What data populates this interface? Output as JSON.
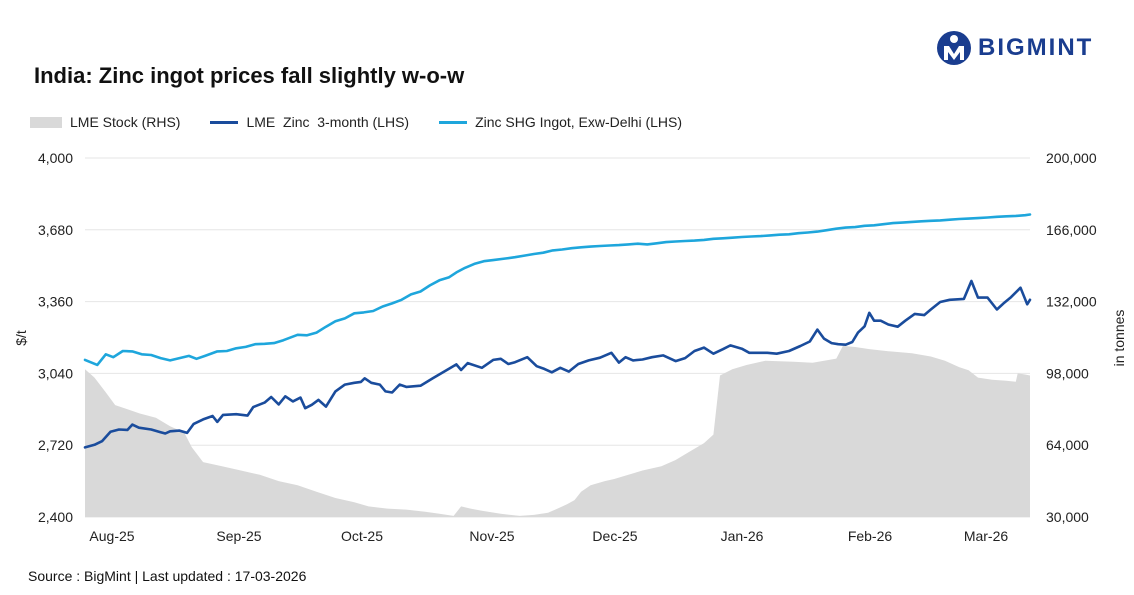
{
  "header": {
    "title": "India: Zinc ingot prices fall slightly w-o-w",
    "brand": "BIGMINT"
  },
  "footer": {
    "source": "Source : BigMint | Last updated : 17-03-2026"
  },
  "colors": {
    "stock": "#d9d9d9",
    "lme": "#1a4c9c",
    "shg": "#1ea6dc",
    "brand": "#1a3d8f",
    "grid": "#e6e6e6"
  },
  "chart_data": {
    "type": "line",
    "x_labels": [
      "Aug-25",
      "Sep-25",
      "Oct-25",
      "Nov-25",
      "Dec-25",
      "Jan-26",
      "Feb-26",
      "Mar-26"
    ],
    "y_left": {
      "label": "$/t",
      "range": [
        2400,
        4000
      ],
      "ticks": [
        "2,400",
        "2,720",
        "3,040",
        "3,360",
        "3,680",
        "4,000"
      ]
    },
    "y_right": {
      "label": "in tonnes",
      "range": [
        30000,
        200000
      ],
      "ticks": [
        "30,000",
        "64,000",
        "98,000",
        "132,000",
        "166,000",
        "200,000"
      ]
    },
    "grid": true,
    "legend_position": "top-left",
    "series": [
      {
        "name": "LME Stock (RHS)",
        "type": "area",
        "axis": "right",
        "points": [
          [
            0,
            100000
          ],
          [
            0.01,
            96000
          ],
          [
            0.022,
            89000
          ],
          [
            0.032,
            83000
          ],
          [
            0.045,
            81000
          ],
          [
            0.058,
            79000
          ],
          [
            0.075,
            77000
          ],
          [
            0.09,
            73000
          ],
          [
            0.105,
            70000
          ],
          [
            0.113,
            63000
          ],
          [
            0.125,
            56000
          ],
          [
            0.145,
            54000
          ],
          [
            0.165,
            52000
          ],
          [
            0.185,
            50000
          ],
          [
            0.205,
            47000
          ],
          [
            0.225,
            45000
          ],
          [
            0.245,
            42000
          ],
          [
            0.265,
            39000
          ],
          [
            0.285,
            37000
          ],
          [
            0.3,
            35000
          ],
          [
            0.32,
            34000
          ],
          [
            0.34,
            33500
          ],
          [
            0.36,
            32500
          ],
          [
            0.375,
            31500
          ],
          [
            0.39,
            30500
          ],
          [
            0.398,
            35000
          ],
          [
            0.408,
            34000
          ],
          [
            0.42,
            33000
          ],
          [
            0.44,
            31500
          ],
          [
            0.46,
            30500
          ],
          [
            0.475,
            31000
          ],
          [
            0.49,
            32000
          ],
          [
            0.5,
            34000
          ],
          [
            0.51,
            36000
          ],
          [
            0.518,
            38000
          ],
          [
            0.525,
            42000
          ],
          [
            0.535,
            45000
          ],
          [
            0.55,
            47000
          ],
          [
            0.56,
            48000
          ],
          [
            0.575,
            50000
          ],
          [
            0.59,
            52000
          ],
          [
            0.61,
            54000
          ],
          [
            0.625,
            57000
          ],
          [
            0.64,
            61000
          ],
          [
            0.655,
            65000
          ],
          [
            0.665,
            69000
          ],
          [
            0.672,
            97000
          ],
          [
            0.685,
            100000
          ],
          [
            0.7,
            102000
          ],
          [
            0.72,
            104000
          ],
          [
            0.75,
            103500
          ],
          [
            0.77,
            103000
          ],
          [
            0.795,
            105000
          ],
          [
            0.802,
            111000
          ],
          [
            0.815,
            110500
          ],
          [
            0.83,
            109500
          ],
          [
            0.85,
            108500
          ],
          [
            0.875,
            107500
          ],
          [
            0.895,
            106000
          ],
          [
            0.91,
            104000
          ],
          [
            0.925,
            101000
          ],
          [
            0.935,
            99500
          ],
          [
            0.945,
            96000
          ],
          [
            0.96,
            95000
          ],
          [
            0.975,
            94500
          ],
          [
            0.985,
            94000
          ],
          [
            0.987,
            98000
          ],
          [
            0.995,
            97500
          ],
          [
            1.0,
            97000
          ],
          [
            1.008,
            110000
          ]
        ]
      },
      {
        "name": "LME  Zinc  3-month (LHS)",
        "type": "line",
        "axis": "left",
        "points": [
          [
            0,
            2710
          ],
          [
            0.01,
            2722
          ],
          [
            0.018,
            2738
          ],
          [
            0.027,
            2780
          ],
          [
            0.036,
            2790
          ],
          [
            0.045,
            2788
          ],
          [
            0.05,
            2812
          ],
          [
            0.057,
            2798
          ],
          [
            0.07,
            2790
          ],
          [
            0.08,
            2778
          ],
          [
            0.085,
            2772
          ],
          [
            0.09,
            2782
          ],
          [
            0.1,
            2785
          ],
          [
            0.108,
            2775
          ],
          [
            0.115,
            2815
          ],
          [
            0.125,
            2835
          ],
          [
            0.135,
            2850
          ],
          [
            0.14,
            2824
          ],
          [
            0.146,
            2855
          ],
          [
            0.16,
            2858
          ],
          [
            0.172,
            2852
          ],
          [
            0.178,
            2890
          ],
          [
            0.19,
            2910
          ],
          [
            0.197,
            2935
          ],
          [
            0.205,
            2902
          ],
          [
            0.212,
            2938
          ],
          [
            0.22,
            2915
          ],
          [
            0.228,
            2932
          ],
          [
            0.233,
            2885
          ],
          [
            0.24,
            2900
          ],
          [
            0.247,
            2922
          ],
          [
            0.255,
            2892
          ],
          [
            0.265,
            2960
          ],
          [
            0.275,
            2990
          ],
          [
            0.285,
            2998
          ],
          [
            0.292,
            3002
          ],
          [
            0.296,
            3018
          ],
          [
            0.303,
            2998
          ],
          [
            0.312,
            2990
          ],
          [
            0.318,
            2960
          ],
          [
            0.325,
            2955
          ],
          [
            0.333,
            2990
          ],
          [
            0.34,
            2980
          ],
          [
            0.355,
            2985
          ],
          [
            0.368,
            3018
          ],
          [
            0.38,
            3048
          ],
          [
            0.393,
            3080
          ],
          [
            0.398,
            3055
          ],
          [
            0.405,
            3086
          ],
          [
            0.42,
            3065
          ],
          [
            0.432,
            3100
          ],
          [
            0.44,
            3105
          ],
          [
            0.448,
            3082
          ],
          [
            0.455,
            3090
          ],
          [
            0.468,
            3112
          ],
          [
            0.478,
            3072
          ],
          [
            0.486,
            3060
          ],
          [
            0.494,
            3045
          ],
          [
            0.503,
            3065
          ],
          [
            0.512,
            3048
          ],
          [
            0.522,
            3082
          ],
          [
            0.533,
            3098
          ],
          [
            0.545,
            3110
          ],
          [
            0.557,
            3132
          ],
          [
            0.565,
            3088
          ],
          [
            0.572,
            3112
          ],
          [
            0.58,
            3098
          ],
          [
            0.59,
            3102
          ],
          [
            0.6,
            3112
          ],
          [
            0.612,
            3120
          ],
          [
            0.625,
            3095
          ],
          [
            0.635,
            3108
          ],
          [
            0.645,
            3140
          ],
          [
            0.655,
            3155
          ],
          [
            0.665,
            3128
          ],
          [
            0.675,
            3148
          ],
          [
            0.683,
            3165
          ],
          [
            0.695,
            3150
          ],
          [
            0.703,
            3132
          ],
          [
            0.712,
            3132
          ],
          [
            0.722,
            3132
          ],
          [
            0.732,
            3128
          ],
          [
            0.745,
            3140
          ],
          [
            0.757,
            3162
          ],
          [
            0.767,
            3182
          ],
          [
            0.775,
            3235
          ],
          [
            0.782,
            3195
          ],
          [
            0.79,
            3175
          ],
          [
            0.797,
            3170
          ],
          [
            0.805,
            3168
          ],
          [
            0.812,
            3180
          ],
          [
            0.818,
            3222
          ],
          [
            0.825,
            3250
          ],
          [
            0.83,
            3310
          ],
          [
            0.835,
            3275
          ],
          [
            0.842,
            3275
          ],
          [
            0.85,
            3258
          ],
          [
            0.86,
            3248
          ],
          [
            0.868,
            3275
          ],
          [
            0.878,
            3305
          ],
          [
            0.888,
            3300
          ],
          [
            0.895,
            3325
          ],
          [
            0.905,
            3358
          ],
          [
            0.915,
            3368
          ],
          [
            0.93,
            3372
          ],
          [
            0.938,
            3452
          ],
          [
            0.945,
            3378
          ],
          [
            0.955,
            3378
          ],
          [
            0.965,
            3325
          ],
          [
            0.972,
            3352
          ],
          [
            0.98,
            3380
          ],
          [
            0.99,
            3422
          ],
          [
            0.997,
            3348
          ],
          [
            1.003,
            3368
          ]
        ]
      },
      {
        "name": "Zinc SHG Ingot, Exw-Delhi (LHS)",
        "type": "line",
        "axis": "left",
        "points": [
          [
            0,
            3100
          ],
          [
            0.013,
            3078
          ],
          [
            0.022,
            3125
          ],
          [
            0.03,
            3112
          ],
          [
            0.04,
            3140
          ],
          [
            0.05,
            3138
          ],
          [
            0.06,
            3125
          ],
          [
            0.07,
            3122
          ],
          [
            0.08,
            3108
          ],
          [
            0.09,
            3098
          ],
          [
            0.1,
            3108
          ],
          [
            0.11,
            3118
          ],
          [
            0.118,
            3105
          ],
          [
            0.127,
            3118
          ],
          [
            0.14,
            3138
          ],
          [
            0.15,
            3140
          ],
          [
            0.16,
            3152
          ],
          [
            0.17,
            3158
          ],
          [
            0.18,
            3170
          ],
          [
            0.19,
            3172
          ],
          [
            0.2,
            3175
          ],
          [
            0.21,
            3188
          ],
          [
            0.225,
            3212
          ],
          [
            0.235,
            3210
          ],
          [
            0.245,
            3222
          ],
          [
            0.255,
            3248
          ],
          [
            0.265,
            3272
          ],
          [
            0.275,
            3285
          ],
          [
            0.285,
            3308
          ],
          [
            0.295,
            3312
          ],
          [
            0.305,
            3318
          ],
          [
            0.315,
            3338
          ],
          [
            0.325,
            3352
          ],
          [
            0.335,
            3368
          ],
          [
            0.345,
            3392
          ],
          [
            0.355,
            3405
          ],
          [
            0.365,
            3432
          ],
          [
            0.375,
            3455
          ],
          [
            0.385,
            3468
          ],
          [
            0.393,
            3490
          ],
          [
            0.402,
            3510
          ],
          [
            0.412,
            3528
          ],
          [
            0.422,
            3540
          ],
          [
            0.432,
            3545
          ],
          [
            0.445,
            3552
          ],
          [
            0.455,
            3558
          ],
          [
            0.465,
            3565
          ],
          [
            0.475,
            3572
          ],
          [
            0.485,
            3578
          ],
          [
            0.495,
            3588
          ],
          [
            0.505,
            3592
          ],
          [
            0.515,
            3598
          ],
          [
            0.525,
            3602
          ],
          [
            0.535,
            3605
          ],
          [
            0.545,
            3608
          ],
          [
            0.555,
            3610
          ],
          [
            0.565,
            3612
          ],
          [
            0.575,
            3615
          ],
          [
            0.585,
            3618
          ],
          [
            0.595,
            3615
          ],
          [
            0.605,
            3620
          ],
          [
            0.615,
            3625
          ],
          [
            0.625,
            3628
          ],
          [
            0.635,
            3630
          ],
          [
            0.645,
            3632
          ],
          [
            0.655,
            3635
          ],
          [
            0.665,
            3640
          ],
          [
            0.675,
            3642
          ],
          [
            0.685,
            3645
          ],
          [
            0.695,
            3648
          ],
          [
            0.705,
            3650
          ],
          [
            0.715,
            3652
          ],
          [
            0.725,
            3655
          ],
          [
            0.735,
            3658
          ],
          [
            0.745,
            3660
          ],
          [
            0.755,
            3665
          ],
          [
            0.765,
            3668
          ],
          [
            0.775,
            3672
          ],
          [
            0.785,
            3678
          ],
          [
            0.795,
            3685
          ],
          [
            0.805,
            3690
          ],
          [
            0.815,
            3692
          ],
          [
            0.825,
            3698
          ],
          [
            0.835,
            3700
          ],
          [
            0.845,
            3705
          ],
          [
            0.855,
            3710
          ],
          [
            0.865,
            3712
          ],
          [
            0.875,
            3715
          ],
          [
            0.885,
            3718
          ],
          [
            0.895,
            3720
          ],
          [
            0.905,
            3722
          ],
          [
            0.915,
            3725
          ],
          [
            0.925,
            3728
          ],
          [
            0.935,
            3730
          ],
          [
            0.945,
            3732
          ],
          [
            0.955,
            3735
          ],
          [
            0.965,
            3738
          ],
          [
            0.975,
            3740
          ],
          [
            0.985,
            3742
          ],
          [
            0.995,
            3745
          ],
          [
            1.003,
            3748
          ]
        ]
      }
    ]
  }
}
